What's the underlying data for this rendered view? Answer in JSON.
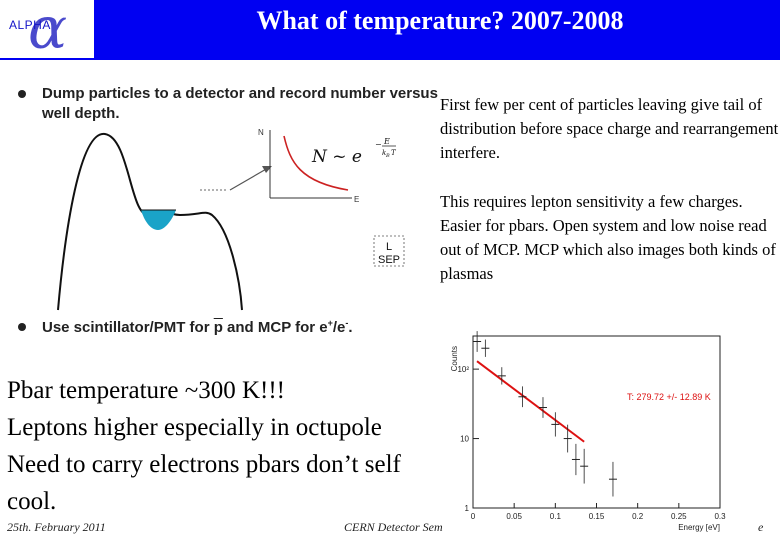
{
  "header": {
    "logo_text": "ALPHA",
    "logo_symbol": "α",
    "title": "What of temperature? 2007-2008",
    "bg_color": "#0000f2"
  },
  "slide": {
    "bullet1": "Dump particles to a detector and record number versus well depth.",
    "bullet2_prefix": "Use scintillator/PMT for ",
    "bullet2_pbar": "p",
    "bullet2_suffix": " and MCP for e",
    "bullet2_sup1": "+",
    "bullet2_slash": "/e",
    "bullet2_sup2": "-",
    "bullet2_end": ".",
    "right_para1": "First few per cent of particles leaving give tail of distribution before space charge and rearrangement interfere.",
    "right_para2": "This requires lepton sensitivity a few charges. Easier for pbars. Open system and low noise read out of MCP. MCP which also images both kinds of plasmas",
    "big_lines": [
      "Pbar temperature ~300 K!!!",
      "Leptons higher especially in octupole",
      "Need to carry electrons pbars don’t self",
      "cool."
    ]
  },
  "well_figure": {
    "axis_n": "N",
    "axis_e": "E",
    "formula_lhs": "N ~ e",
    "formula_exp_num": "E",
    "formula_exp_den": "k",
    "formula_exp_den_sub": "B",
    "formula_exp_den_t": "T",
    "formula_minus": "−",
    "box_line1": "L",
    "box_line2": "SEP",
    "well_color": "#1aa3c8",
    "curve_color": "#cc2222"
  },
  "footer": {
    "date": "25th. February 2011",
    "center": "CERN Detector Sem",
    "right": "e"
  },
  "chart_data": {
    "type": "scatter",
    "title": "",
    "xlabel": "Energy [eV]",
    "ylabel": "Counts",
    "x_ticks": [
      "0",
      "0.05",
      "0.1",
      "0.15",
      "0.2",
      "0.25",
      "0.3"
    ],
    "y_ticks": [
      "1",
      "10",
      "10²"
    ],
    "xlim": [
      0,
      0.3
    ],
    "ylim_log": [
      1,
      300
    ],
    "y_log": true,
    "fit_label": "T: 279.72 +/- 12.89 K",
    "fit_color": "#dd1111",
    "fit_line": {
      "x": [
        0.0,
        0.135
      ],
      "y": [
        130,
        9
      ]
    },
    "points": [
      {
        "x": 0.005,
        "y": 250,
        "err": 0.3
      },
      {
        "x": 0.015,
        "y": 200,
        "err": 0.25
      },
      {
        "x": 0.035,
        "y": 80,
        "err": 0.25
      },
      {
        "x": 0.06,
        "y": 40,
        "err": 0.3
      },
      {
        "x": 0.085,
        "y": 28,
        "err": 0.3
      },
      {
        "x": 0.1,
        "y": 16,
        "err": 0.35
      },
      {
        "x": 0.115,
        "y": 10,
        "err": 0.4
      },
      {
        "x": 0.125,
        "y": 5,
        "err": 0.45
      },
      {
        "x": 0.135,
        "y": 4,
        "err": 0.5
      },
      {
        "x": 0.17,
        "y": 2.6,
        "err": 0.5
      }
    ],
    "grid": false,
    "legend": "top-right"
  }
}
